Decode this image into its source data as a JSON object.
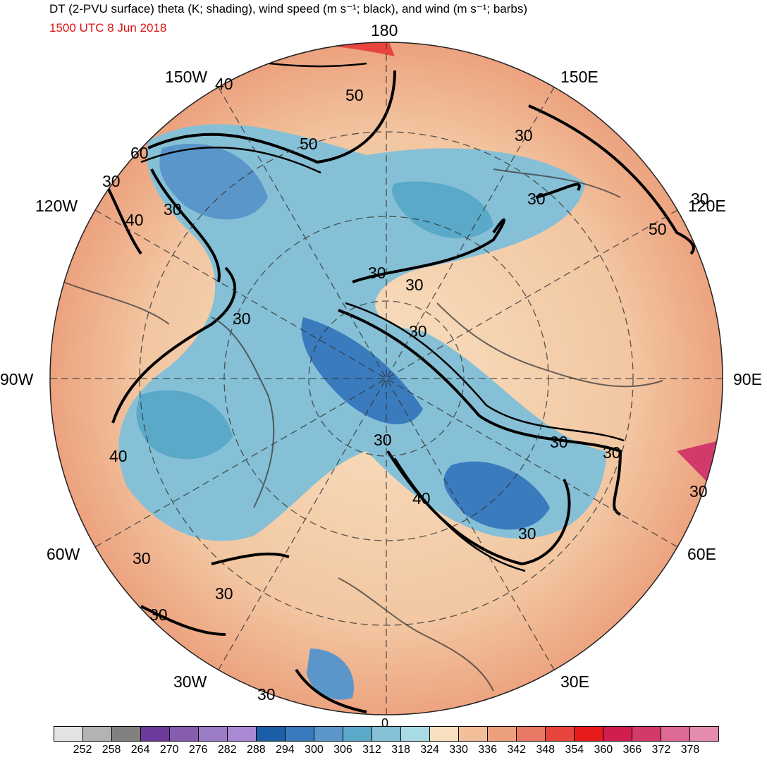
{
  "title": "DT (2-PVU surface) theta (K; shading), wind speed (m s⁻¹; black), and wind (m s⁻¹; barbs)",
  "valid_time": "1500 UTC 8 Jun 2018",
  "longitude_labels": {
    "lon_180": "180",
    "lon_150w": "150W",
    "lon_150e": "150E",
    "lon_120w": "120W",
    "lon_120e": "120E",
    "lon_90w": "90W",
    "lon_90e": "90E",
    "lon_60w": "60W",
    "lon_60e": "60E",
    "lon_30w": "30W",
    "lon_30e": "30E",
    "lon_0": "0"
  },
  "contour_labels": [
    "40",
    "50",
    "50",
    "60",
    "30",
    "40",
    "30",
    "30",
    "30",
    "30",
    "30",
    "30",
    "30",
    "30",
    "30",
    "40",
    "30",
    "30",
    "30",
    "30",
    "30",
    "30",
    "30",
    "40",
    "30",
    "50"
  ],
  "colorbar": {
    "colors": [
      "#e3e3e3",
      "#b3b3b3",
      "#808080",
      "#6e3b9c",
      "#855cae",
      "#9a7cc4",
      "#a98ad2",
      "#1b5fa8",
      "#3a7bbd",
      "#5b96cb",
      "#5aa9c9",
      "#86c0d6",
      "#a9dbe5",
      "#f8dfc0",
      "#f2bf9a",
      "#ec9f7c",
      "#e77864",
      "#e8453e",
      "#e81b1b",
      "#d01f4e",
      "#d23a6a",
      "#de6b95",
      "#e58cae"
    ],
    "tick_labels": [
      "252",
      "258",
      "264",
      "270",
      "276",
      "282",
      "288",
      "294",
      "300",
      "306",
      "312",
      "318",
      "324",
      "330",
      "336",
      "342",
      "348",
      "354",
      "360",
      "366",
      "372",
      "378"
    ]
  }
}
